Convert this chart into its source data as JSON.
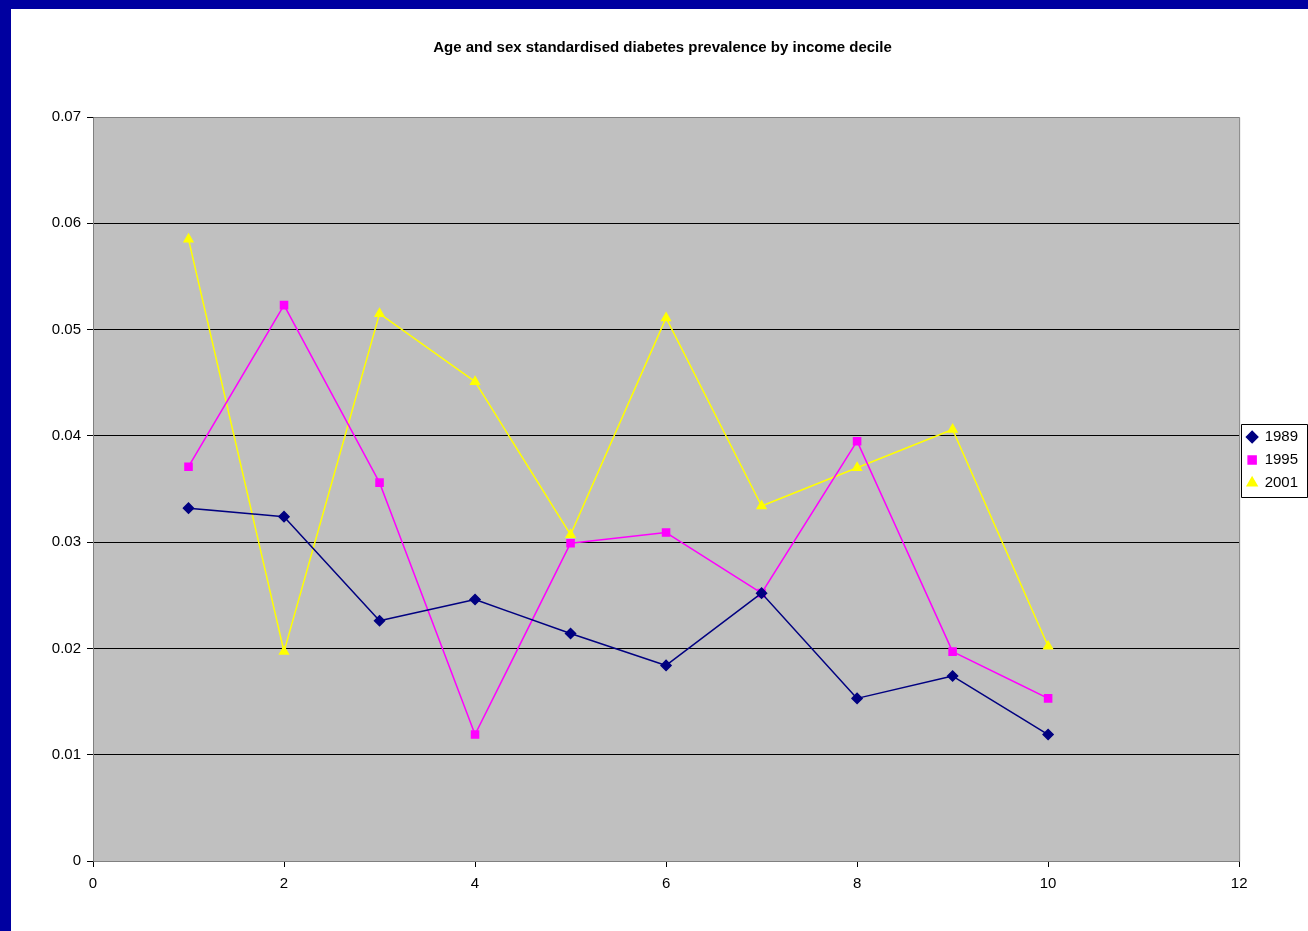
{
  "chart_data": {
    "type": "line",
    "title": "Age and sex standardised diabetes prevalence by income decile",
    "x": [
      1,
      2,
      3,
      4,
      5,
      6,
      7,
      8,
      9,
      10
    ],
    "series": [
      {
        "name": "1989",
        "color": "#000080",
        "marker": "diamond",
        "values": [
          0.0332,
          0.0324,
          0.0226,
          0.0246,
          0.0214,
          0.0184,
          0.0252,
          0.0153,
          0.0174,
          0.0119
        ]
      },
      {
        "name": "1995",
        "color": "#ff00ff",
        "marker": "square",
        "values": [
          0.0371,
          0.0523,
          0.0356,
          0.0119,
          0.0299,
          0.0309,
          0.0252,
          0.0395,
          0.0197,
          0.0153
        ]
      },
      {
        "name": "2001",
        "color": "#ffff00",
        "marker": "triangle",
        "values": [
          0.0585,
          0.0197,
          0.0515,
          0.0451,
          0.0307,
          0.0511,
          0.0334,
          0.037,
          0.0406,
          0.0202
        ]
      }
    ],
    "xlim": [
      0,
      12
    ],
    "xticks": [
      0,
      2,
      4,
      6,
      8,
      10,
      12
    ],
    "ylim": [
      0,
      0.07
    ],
    "yticks": [
      0,
      0.01,
      0.02,
      0.03,
      0.04,
      0.05,
      0.06,
      0.07
    ],
    "grid": "y",
    "legend": "right",
    "line_style": "solid"
  }
}
